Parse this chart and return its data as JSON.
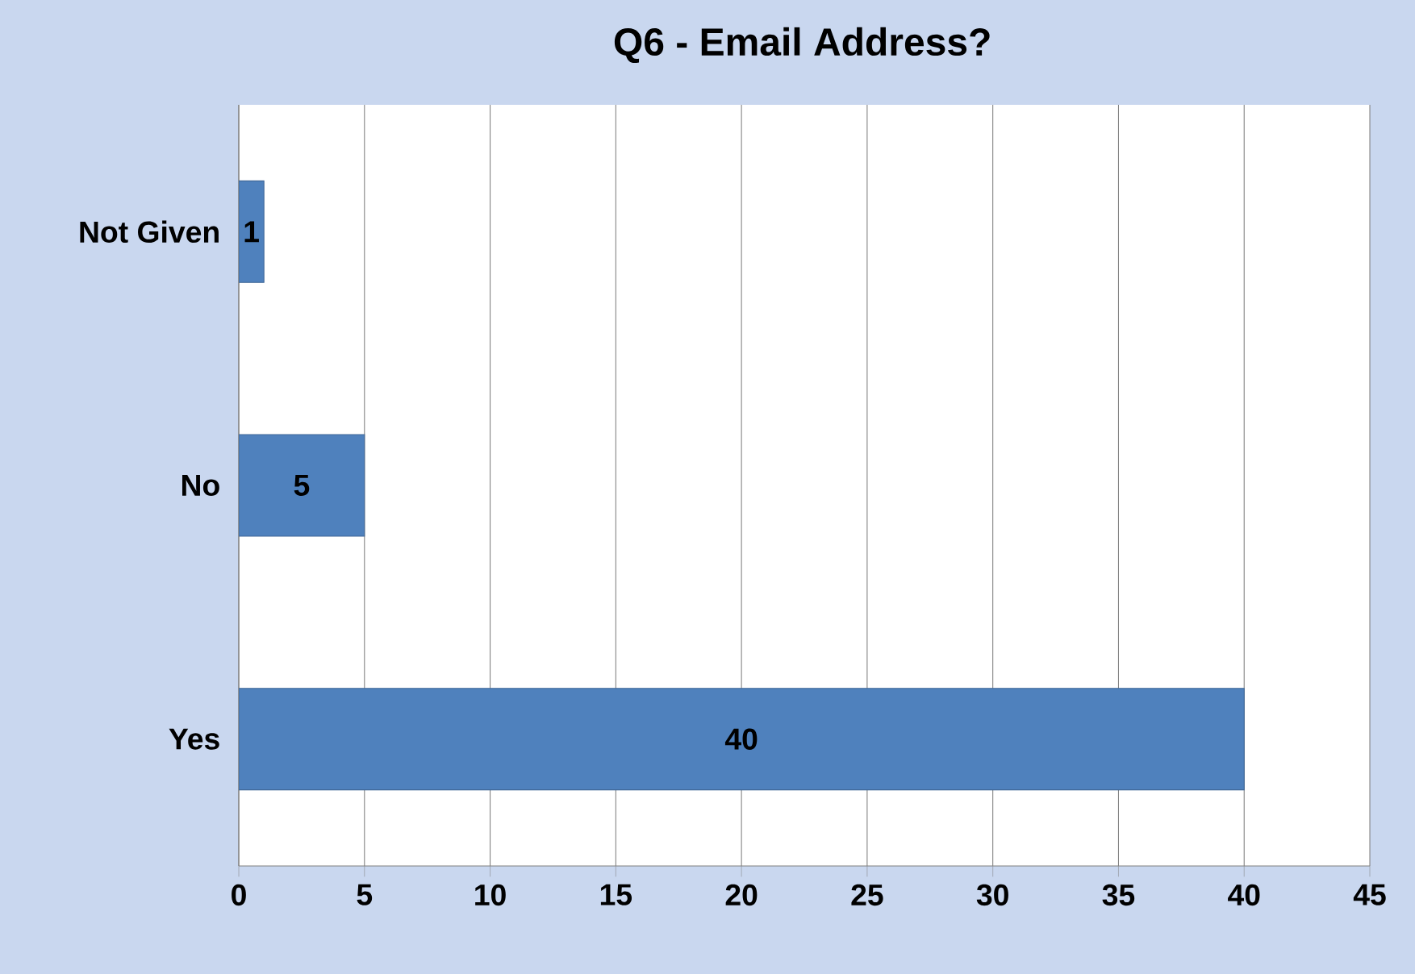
{
  "chart_data": {
    "type": "bar",
    "orientation": "horizontal",
    "title": "Q6 - Email Address?",
    "categories": [
      "Not Given",
      "No",
      "Yes"
    ],
    "values": [
      1,
      5,
      40
    ],
    "color": "#4f81bd",
    "xlim": [
      0,
      45
    ],
    "xticks": [
      0,
      5,
      10,
      15,
      20,
      25,
      30,
      35,
      40,
      45
    ],
    "grid": "x",
    "data_labels": true
  }
}
